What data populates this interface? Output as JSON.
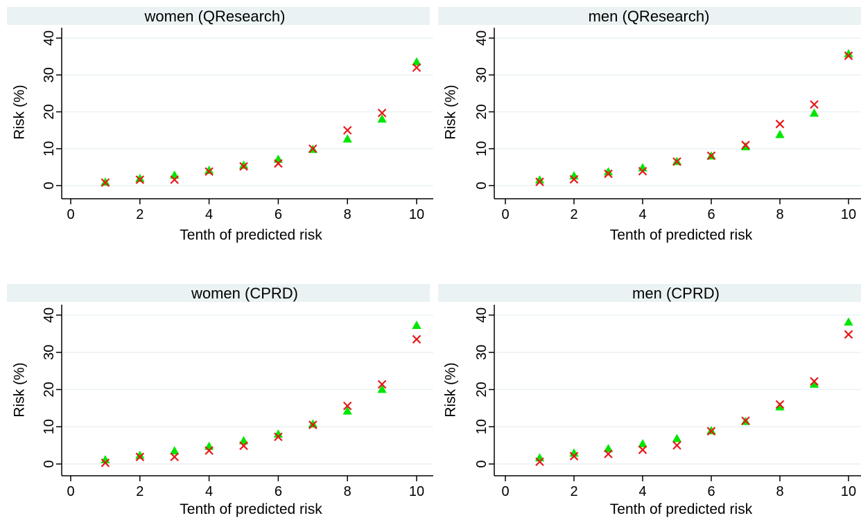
{
  "colors": {
    "background": "#ffffff",
    "title_band": "#eaf2f3",
    "grid": "#eaf2f3",
    "axis": "#000000",
    "predicted_marker": "#00e600",
    "observed_marker": "#e61919"
  },
  "chart_data": [
    {
      "type": "scatter",
      "title": "women (QResearch)",
      "xlabel": "Tenth of predicted risk",
      "ylabel": "Risk (%)",
      "xlim": [
        0,
        10
      ],
      "ylim": [
        0,
        40
      ],
      "xticks": [
        0,
        2,
        4,
        6,
        8,
        10
      ],
      "yticks": [
        0,
        10,
        20,
        30,
        40
      ],
      "grid": true,
      "series": [
        {
          "marker": "triangle",
          "color": "#00e600",
          "x": [
            1,
            2,
            3,
            4,
            5,
            6,
            7,
            8,
            9,
            10
          ],
          "y": [
            0.9,
            1.9,
            2.8,
            4.1,
            5.5,
            7.1,
            9.8,
            12.6,
            18.0,
            33.5
          ]
        },
        {
          "marker": "x",
          "color": "#e61919",
          "x": [
            1,
            2,
            3,
            4,
            5,
            6,
            7,
            8,
            9,
            10
          ],
          "y": [
            0.8,
            1.6,
            1.6,
            3.8,
            5.2,
            6.0,
            10.0,
            15.0,
            19.7,
            32.0
          ]
        }
      ]
    },
    {
      "type": "scatter",
      "title": "men (QResearch)",
      "xlabel": "Tenth of predicted risk",
      "ylabel": "Risk (%)",
      "xlim": [
        0,
        10
      ],
      "ylim": [
        0,
        40
      ],
      "xticks": [
        0,
        2,
        4,
        6,
        8,
        10
      ],
      "yticks": [
        0,
        10,
        20,
        30,
        40
      ],
      "grid": true,
      "series": [
        {
          "marker": "triangle",
          "color": "#00e600",
          "x": [
            1,
            2,
            3,
            4,
            5,
            6,
            7,
            8,
            9,
            10
          ],
          "y": [
            1.5,
            2.6,
            3.7,
            4.8,
            6.5,
            8.0,
            10.5,
            13.8,
            19.6,
            35.7
          ]
        },
        {
          "marker": "x",
          "color": "#e61919",
          "x": [
            1,
            2,
            3,
            4,
            5,
            6,
            7,
            8,
            9,
            10
          ],
          "y": [
            1.0,
            1.7,
            3.2,
            3.9,
            6.5,
            8.1,
            11.0,
            16.7,
            22.0,
            35.2
          ]
        }
      ]
    },
    {
      "type": "scatter",
      "title": "women (CPRD)",
      "xlabel": "Tenth of predicted risk",
      "ylabel": "Risk (%)",
      "xlim": [
        0,
        10
      ],
      "ylim": [
        0,
        40
      ],
      "xticks": [
        0,
        2,
        4,
        6,
        8,
        10
      ],
      "yticks": [
        0,
        10,
        20,
        30,
        40
      ],
      "grid": true,
      "series": [
        {
          "marker": "triangle",
          "color": "#00e600",
          "x": [
            1,
            2,
            3,
            4,
            5,
            6,
            7,
            8,
            9,
            10
          ],
          "y": [
            1.1,
            2.3,
            3.5,
            4.7,
            6.2,
            8.0,
            10.7,
            14.2,
            20.0,
            37.2
          ]
        },
        {
          "marker": "x",
          "color": "#e61919",
          "x": [
            1,
            2,
            3,
            4,
            5,
            6,
            7,
            8,
            9,
            10
          ],
          "y": [
            0.3,
            1.9,
            1.9,
            3.6,
            4.9,
            7.3,
            10.5,
            15.6,
            21.4,
            33.5
          ]
        }
      ]
    },
    {
      "type": "scatter",
      "title": "men (CPRD)",
      "xlabel": "Tenth of predicted risk",
      "ylabel": "Risk (%)",
      "xlim": [
        0,
        10
      ],
      "ylim": [
        0,
        40
      ],
      "xticks": [
        0,
        2,
        4,
        6,
        8,
        10
      ],
      "yticks": [
        0,
        10,
        20,
        30,
        40
      ],
      "grid": true,
      "series": [
        {
          "marker": "triangle",
          "color": "#00e600",
          "x": [
            1,
            2,
            3,
            4,
            5,
            6,
            7,
            8,
            9,
            10
          ],
          "y": [
            1.6,
            2.9,
            4.1,
            5.4,
            6.8,
            8.9,
            11.4,
            15.3,
            21.4,
            38.1
          ]
        },
        {
          "marker": "x",
          "color": "#e61919",
          "x": [
            1,
            2,
            3,
            4,
            5,
            6,
            7,
            8,
            9,
            10
          ],
          "y": [
            0.6,
            2.1,
            2.7,
            3.8,
            5.0,
            8.8,
            11.6,
            16.0,
            22.2,
            34.8
          ]
        }
      ]
    }
  ]
}
